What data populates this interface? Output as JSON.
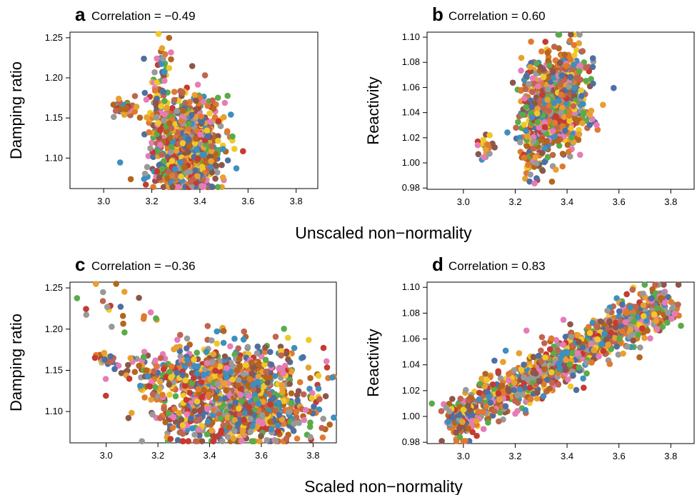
{
  "figure": {
    "row_xlabels": [
      "Unscaled non−normality",
      "Scaled non−normality"
    ]
  },
  "palette": [
    "#b5651d",
    "#4e6fa3",
    "#e07a2e",
    "#c53a32",
    "#5aab4a",
    "#e57cb8",
    "#999999",
    "#f0c929",
    "#8c564b",
    "#3d8fbf",
    "#c0654f",
    "#e8a030"
  ],
  "chart_data": [
    {
      "type": "scatter",
      "letter": "a",
      "title": "Correlation = −0.49",
      "xlabel": "",
      "ylabel": "Damping ratio",
      "xlim": [
        2.86,
        3.89
      ],
      "ylim": [
        1.062,
        1.257
      ],
      "xticks": [
        3.0,
        3.2,
        3.4,
        3.6,
        3.8
      ],
      "xticklabels": [
        "3.0",
        "3.2",
        "3.4",
        "3.6",
        "3.8"
      ],
      "yticks": [
        1.1,
        1.15,
        1.2,
        1.25
      ],
      "yticklabels": [
        "1.10",
        "1.15",
        "1.20",
        "1.25"
      ],
      "correlation": -0.49,
      "clusters": [
        {
          "x": 3.35,
          "y": 1.12,
          "sx": 0.07,
          "sy": 0.03,
          "n": 700
        },
        {
          "x": 3.4,
          "y": 1.09,
          "sx": 0.03,
          "sy": 0.015,
          "n": 120
        },
        {
          "x": 3.23,
          "y": 1.15,
          "sx": 0.03,
          "sy": 0.03,
          "n": 80
        },
        {
          "x": 3.08,
          "y": 1.163,
          "sx": 0.03,
          "sy": 0.004,
          "n": 35
        },
        {
          "x": 3.25,
          "y": 1.21,
          "sx": 0.02,
          "sy": 0.02,
          "n": 25
        },
        {
          "x": 3.3,
          "y": 1.08,
          "sx": 0.05,
          "sy": 0.01,
          "n": 80
        }
      ]
    },
    {
      "type": "scatter",
      "letter": "b",
      "title": "Correlation = 0.60",
      "xlabel": "",
      "ylabel": "Reactivity",
      "xlim": [
        2.86,
        3.89
      ],
      "ylim": [
        0.979,
        1.104
      ],
      "xticks": [
        3.0,
        3.2,
        3.4,
        3.6,
        3.8
      ],
      "xticklabels": [
        "3.0",
        "3.2",
        "3.4",
        "3.6",
        "3.8"
      ],
      "yticks": [
        0.98,
        1.0,
        1.02,
        1.04,
        1.06,
        1.08,
        1.1
      ],
      "yticklabels": [
        "0.98",
        "1.00",
        "1.02",
        "1.04",
        "1.06",
        "1.08",
        "1.10"
      ],
      "correlation": 0.6,
      "clusters": [
        {
          "x": 3.35,
          "y": 1.045,
          "sx": 0.06,
          "sy": 0.018,
          "n": 700
        },
        {
          "x": 3.4,
          "y": 1.07,
          "sx": 0.04,
          "sy": 0.015,
          "n": 120
        },
        {
          "x": 3.27,
          "y": 1.01,
          "sx": 0.03,
          "sy": 0.012,
          "n": 80
        },
        {
          "x": 3.08,
          "y": 1.012,
          "sx": 0.02,
          "sy": 0.006,
          "n": 20
        }
      ]
    },
    {
      "type": "scatter",
      "letter": "c",
      "title": "Correlation = −0.36",
      "xlabel": "",
      "ylabel": "Damping ratio",
      "xlim": [
        2.86,
        3.89
      ],
      "ylim": [
        1.062,
        1.257
      ],
      "xticks": [
        3.0,
        3.2,
        3.4,
        3.6,
        3.8
      ],
      "xticklabels": [
        "3.0",
        "3.2",
        "3.4",
        "3.6",
        "3.8"
      ],
      "yticks": [
        1.1,
        1.15,
        1.2,
        1.25
      ],
      "yticklabels": [
        "1.10",
        "1.15",
        "1.20",
        "1.25"
      ],
      "correlation": -0.36,
      "clusters": [
        {
          "x": 3.5,
          "y": 1.12,
          "sx": 0.15,
          "sy": 0.03,
          "n": 850
        },
        {
          "x": 3.35,
          "y": 1.15,
          "sx": 0.15,
          "sy": 0.015,
          "n": 200
        },
        {
          "x": 3.6,
          "y": 1.09,
          "sx": 0.08,
          "sy": 0.012,
          "n": 150
        },
        {
          "x": 3.0,
          "y": 1.163,
          "sx": 0.02,
          "sy": 0.004,
          "n": 20
        },
        {
          "x": 3.05,
          "y": 1.21,
          "sx": 0.08,
          "sy": 0.025,
          "n": 25
        },
        {
          "x": 3.28,
          "y": 1.09,
          "sx": 0.05,
          "sy": 0.01,
          "n": 50
        }
      ]
    },
    {
      "type": "scatter",
      "letter": "d",
      "title": "Correlation = 0.83",
      "xlabel": "",
      "ylabel": "Reactivity",
      "xlim": [
        2.86,
        3.89
      ],
      "ylim": [
        0.979,
        1.104
      ],
      "xticks": [
        3.0,
        3.2,
        3.4,
        3.6,
        3.8
      ],
      "xticklabels": [
        "3.0",
        "3.2",
        "3.4",
        "3.6",
        "3.8"
      ],
      "yticks": [
        0.98,
        1.0,
        1.02,
        1.04,
        1.06,
        1.08,
        1.1
      ],
      "yticklabels": [
        "0.98",
        "1.00",
        "1.02",
        "1.04",
        "1.06",
        "1.08",
        "1.10"
      ],
      "correlation": 0.83,
      "trend": {
        "x0": 2.95,
        "y0": 0.995,
        "x1": 3.8,
        "y1": 1.09
      },
      "clusters": [
        {
          "x": 3.45,
          "y": 1.045,
          "sx": 0.2,
          "sy": 0.009,
          "n": 1100,
          "along_trend": true
        }
      ]
    }
  ]
}
